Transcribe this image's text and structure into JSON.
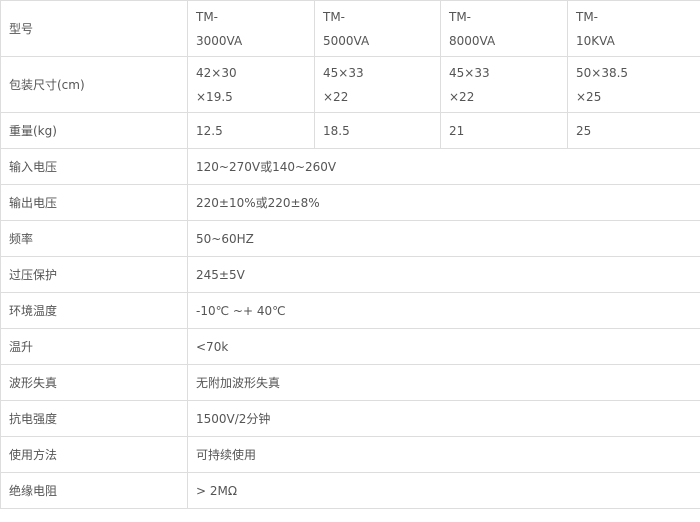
{
  "table": {
    "model_row": {
      "label": "型号",
      "values": [
        "TM-\n3000VA",
        "TM-\n5000VA",
        "TM-\n8000VA",
        "TM-\n10KVA"
      ]
    },
    "size_row": {
      "label": "包装尺寸(cm)",
      "values": [
        "42×30\n×19.5",
        "45×33\n×22",
        "45×33\n×22",
        "50×38.5\n×25"
      ]
    },
    "weight_row": {
      "label": "重量(kg)",
      "values": [
        "12.5",
        "18.5",
        "21",
        "25"
      ]
    },
    "spec_rows": [
      {
        "label": "输入电压",
        "value": "120~270V或140~260V"
      },
      {
        "label": "输出电压",
        "value": "220±10%或220±8%"
      },
      {
        "label": "频率",
        "value": "50~60HZ"
      },
      {
        "label": "过压保护",
        "value": "245±5V"
      },
      {
        "label": "环境温度",
        "value": "-10℃ ~+ 40℃"
      },
      {
        "label": "温升",
        "value": "<70k"
      },
      {
        "label": "波形失真",
        "value": "无附加波形失真"
      },
      {
        "label": "抗电强度",
        "value": "1500V/2分钟"
      },
      {
        "label": "使用方法",
        "value": "可持续使用"
      },
      {
        "label": "绝缘电阻",
        "value": "> 2MΩ"
      }
    ]
  }
}
